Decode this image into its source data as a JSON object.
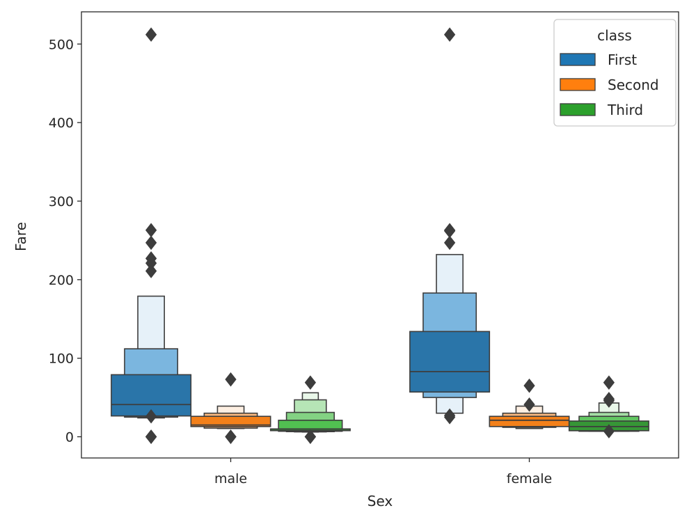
{
  "chart_data": {
    "type": "boxen",
    "title": "",
    "xlabel": "Sex",
    "ylabel": "Fare",
    "categories": [
      "male",
      "female"
    ],
    "ylim": [
      -27,
      541
    ],
    "yticks": [
      0,
      100,
      200,
      300,
      400,
      500
    ],
    "grid": false,
    "legend": {
      "title": "class",
      "position": "top-right",
      "entries": [
        "First",
        "Second",
        "Third"
      ]
    },
    "series": [
      {
        "name": "First",
        "color": "#1f77b4",
        "groups": [
          {
            "category": "male",
            "median": 41,
            "boxes": [
              [
                26.5,
                79
              ],
              [
                25,
                112
              ],
              [
                24,
                179
              ]
            ],
            "outliers": [
              0,
              0,
              0,
              26,
              211,
              221,
              227,
              247,
              263,
              512
            ]
          },
          {
            "category": "female",
            "median": 83,
            "boxes": [
              [
                57,
                134
              ],
              [
                50,
                183
              ],
              [
                30,
                232
              ]
            ],
            "outliers": [
              25,
              27,
              247,
              262,
              263,
              512
            ]
          }
        ]
      },
      {
        "name": "Second",
        "color": "#ff7f0e",
        "groups": [
          {
            "category": "male",
            "median": 15,
            "boxes": [
              [
                13,
                26
              ],
              [
                11,
                30
              ],
              [
                10.5,
                39
              ]
            ],
            "outliers": [
              0,
              0,
              0,
              73
            ]
          },
          {
            "category": "female",
            "median": 21,
            "boxes": [
              [
                13,
                26
              ],
              [
                12,
                30
              ],
              [
                10.5,
                39
              ]
            ],
            "outliers": [
              41,
              65
            ]
          }
        ]
      },
      {
        "name": "Third",
        "color": "#2ca02c",
        "groups": [
          {
            "category": "male",
            "median": 8,
            "boxes": [
              [
                7.8,
                10
              ],
              [
                7,
                21
              ],
              [
                6.5,
                31
              ],
              [
                6.2,
                47
              ],
              [
                6,
                56
              ]
            ],
            "outliers": [
              0,
              0,
              0,
              69
            ]
          },
          {
            "category": "female",
            "median": 13,
            "boxes": [
              [
                7.7,
                20
              ],
              [
                7,
                26
              ],
              [
                7,
                31
              ],
              [
                7,
                43
              ]
            ],
            "outliers": [
              7,
              46,
              48,
              69
            ]
          }
        ]
      }
    ]
  }
}
